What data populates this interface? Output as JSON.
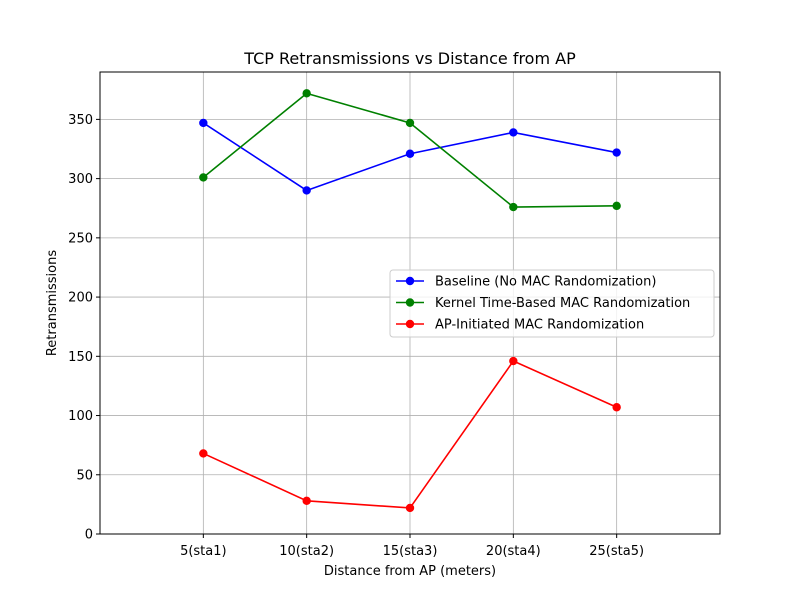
{
  "chart_data": {
    "type": "line",
    "title": "TCP Retransmissions vs Distance from AP",
    "xlabel": "Distance from AP (meters)",
    "ylabel": "Retransmissions",
    "categories": [
      "5(sta1)",
      "10(sta2)",
      "15(sta3)",
      "20(sta4)",
      "25(sta5)"
    ],
    "x": [
      5,
      10,
      15,
      20,
      25
    ],
    "xlim": [
      0,
      30
    ],
    "ylim": [
      0,
      390
    ],
    "yticks": [
      0,
      50,
      100,
      150,
      200,
      250,
      300,
      350
    ],
    "grid": true,
    "legend_position": "center-right",
    "marker": "circle",
    "series": [
      {
        "name": "Baseline (No MAC Randomization)",
        "color": "#0000ff",
        "values": [
          347,
          290,
          321,
          339,
          322
        ]
      },
      {
        "name": "Kernel Time-Based MAC Randomization",
        "color": "#008000",
        "values": [
          301,
          372,
          347,
          276,
          277
        ]
      },
      {
        "name": "AP-Initiated MAC Randomization",
        "color": "#ff0000",
        "values": [
          68,
          28,
          22,
          146,
          107
        ]
      }
    ]
  }
}
